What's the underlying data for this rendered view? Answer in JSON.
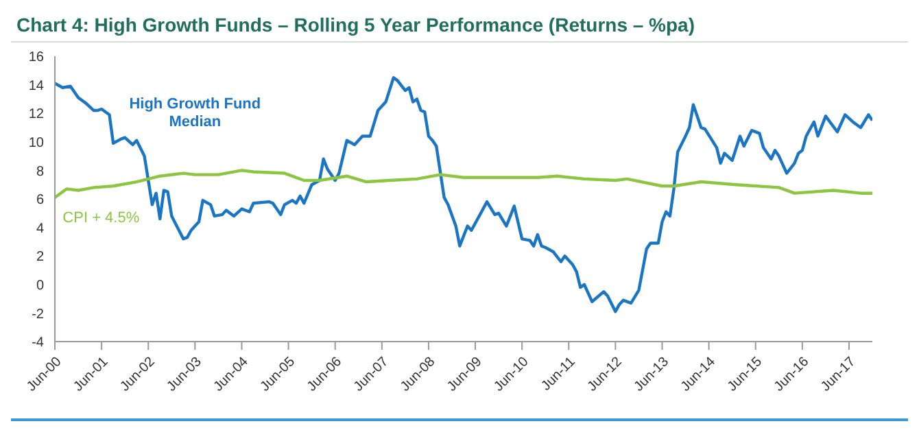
{
  "chart_data": {
    "type": "line",
    "title": "Chart 4:  High Growth Funds – Rolling 5 Year Performance (Returns – %pa)",
    "series": [
      {
        "name": "High Growth Fund Median",
        "color": "#1a75c4",
        "x": [
          "2000-06",
          "2000-08",
          "2000-10",
          "2000-12",
          "2001-02",
          "2001-04",
          "2001-05",
          "2001-06",
          "2001-08",
          "2001-09",
          "2001-11",
          "2001-12",
          "2002-02",
          "2002-03",
          "2002-05",
          "2002-07",
          "2002-08",
          "2002-09",
          "2002-10",
          "2002-11",
          "2002-12",
          "2003-03",
          "2003-04",
          "2003-05",
          "2003-07",
          "2003-08",
          "2003-10",
          "2003-11",
          "2004-01",
          "2004-02",
          "2004-04",
          "2004-06",
          "2004-08",
          "2004-09",
          "2005-01",
          "2005-02",
          "2005-04",
          "2005-05",
          "2005-07",
          "2005-08",
          "2005-09",
          "2005-10",
          "2005-12",
          "2006-02",
          "2006-03",
          "2006-04",
          "2006-06",
          "2006-07",
          "2006-09",
          "2006-11",
          "2007-01",
          "2007-03",
          "2007-05",
          "2007-07",
          "2007-09",
          "2007-10",
          "2007-12",
          "2008-01",
          "2008-02",
          "2008-03",
          "2008-04",
          "2008-05",
          "2008-06",
          "2008-07",
          "2008-08",
          "2008-10",
          "2008-11",
          "2009-01",
          "2009-02",
          "2009-04",
          "2009-05",
          "2009-07",
          "2009-09",
          "2009-11",
          "2009-12",
          "2010-02",
          "2010-04",
          "2010-06",
          "2010-08",
          "2010-09",
          "2010-10",
          "2010-11",
          "2010-12",
          "2011-02",
          "2011-04",
          "2011-05",
          "2011-07",
          "2011-08",
          "2011-09",
          "2011-10",
          "2011-12",
          "2012-03",
          "2012-04",
          "2012-06",
          "2012-07",
          "2012-08",
          "2012-10",
          "2012-12",
          "2013-02",
          "2013-03",
          "2013-05",
          "2013-06",
          "2013-07",
          "2013-08",
          "2013-09",
          "2013-10",
          "2013-12",
          "2014-01",
          "2014-02",
          "2014-04",
          "2014-05",
          "2014-08",
          "2014-09",
          "2014-10",
          "2014-12",
          "2015-02",
          "2015-03",
          "2015-05",
          "2015-07",
          "2015-08",
          "2015-10",
          "2015-11",
          "2015-12",
          "2016-02",
          "2016-04",
          "2016-05",
          "2016-06",
          "2016-07",
          "2016-09",
          "2016-10",
          "2016-12",
          "2017-03",
          "2017-05",
          "2017-07",
          "2017-09",
          "2017-11",
          "2017-12"
        ],
        "values": [
          14.1,
          13.8,
          13.9,
          13.1,
          12.7,
          12.2,
          12.2,
          12.3,
          11.9,
          9.9,
          10.2,
          10.3,
          9.8,
          10.1,
          9.0,
          5.6,
          6.4,
          4.6,
          6.6,
          6.5,
          4.8,
          3.2,
          3.3,
          3.8,
          4.4,
          5.9,
          5.6,
          4.8,
          4.9,
          5.2,
          4.8,
          5.3,
          5.1,
          5.7,
          5.8,
          5.7,
          4.9,
          5.6,
          5.9,
          5.7,
          6.2,
          5.7,
          7.0,
          7.3,
          8.8,
          8.1,
          7.3,
          7.8,
          10.1,
          9.8,
          10.4,
          10.4,
          12.2,
          12.8,
          14.5,
          14.3,
          13.6,
          13.8,
          12.8,
          13.0,
          12.2,
          12.1,
          10.4,
          10.1,
          9.7,
          6.1,
          5.6,
          4.1,
          2.7,
          4.1,
          3.8,
          4.8,
          5.8,
          4.9,
          5.0,
          4.1,
          5.5,
          3.2,
          3.1,
          2.7,
          3.5,
          2.7,
          2.6,
          2.3,
          1.6,
          2.0,
          1.4,
          0.9,
          -0.2,
          0.0,
          -1.2,
          -0.5,
          -0.8,
          -1.9,
          -1.4,
          -1.1,
          -1.3,
          -0.4,
          2.5,
          2.9,
          2.9,
          4.4,
          5.1,
          4.8,
          6.7,
          9.3,
          10.4,
          11.0,
          12.6,
          11.0,
          10.9,
          9.6,
          8.5,
          9.2,
          8.7,
          10.4,
          9.7,
          10.8,
          10.6,
          9.6,
          8.8,
          9.4,
          9.0,
          7.8,
          8.5,
          9.2,
          9.4,
          10.4,
          11.4,
          10.4,
          11.8,
          10.7,
          11.9,
          11.4,
          11.0,
          11.9,
          11.5
        ]
      },
      {
        "name": "CPI + 4.5%",
        "color": "#8cc63f",
        "x": [
          "2000-06",
          "2000-09",
          "2000-12",
          "2001-04",
          "2001-09",
          "2002-03",
          "2002-09",
          "2003-03",
          "2003-06",
          "2003-12",
          "2004-06",
          "2004-09",
          "2005-05",
          "2005-10",
          "2006-02",
          "2006-09",
          "2007-02",
          "2007-08",
          "2008-03",
          "2008-09",
          "2009-03",
          "2009-11",
          "2010-10",
          "2011-03",
          "2011-10",
          "2012-06",
          "2012-09",
          "2013-06",
          "2013-09",
          "2014-04",
          "2015-01",
          "2015-12",
          "2016-04",
          "2017-02",
          "2017-09",
          "2017-12"
        ],
        "values": [
          6.1,
          6.7,
          6.6,
          6.8,
          6.9,
          7.2,
          7.6,
          7.8,
          7.7,
          7.7,
          8.0,
          7.9,
          7.8,
          7.3,
          7.3,
          7.6,
          7.2,
          7.3,
          7.4,
          7.7,
          7.5,
          7.5,
          7.5,
          7.6,
          7.4,
          7.3,
          7.4,
          6.9,
          6.9,
          7.2,
          7.0,
          6.8,
          6.4,
          6.6,
          6.4,
          6.4
        ]
      }
    ],
    "xlim": [
      "2000-06",
      "2017-12"
    ],
    "xticks": [
      {
        "value": "2000-06",
        "label": "Jun-00"
      },
      {
        "value": "2001-06",
        "label": "Jun-01"
      },
      {
        "value": "2002-06",
        "label": "Jun-02"
      },
      {
        "value": "2003-06",
        "label": "Jun-03"
      },
      {
        "value": "2004-06",
        "label": "Jun-04"
      },
      {
        "value": "2005-06",
        "label": "Jun-05"
      },
      {
        "value": "2006-06",
        "label": "Jun-06"
      },
      {
        "value": "2007-06",
        "label": "Jun-07"
      },
      {
        "value": "2008-06",
        "label": "Jun-08"
      },
      {
        "value": "2009-06",
        "label": "Jun-09"
      },
      {
        "value": "2010-06",
        "label": "Jun-10"
      },
      {
        "value": "2011-06",
        "label": "Jun-11"
      },
      {
        "value": "2012-06",
        "label": "Jun-12"
      },
      {
        "value": "2013-06",
        "label": "Jun-13"
      },
      {
        "value": "2014-06",
        "label": "Jun-14"
      },
      {
        "value": "2015-06",
        "label": "Jun-15"
      },
      {
        "value": "2016-06",
        "label": "Jun-16"
      },
      {
        "value": "2017-06",
        "label": "Jun-17"
      }
    ],
    "ylim": [
      -4,
      16
    ],
    "yticks": [
      -4,
      -2,
      0,
      2,
      4,
      6,
      8,
      10,
      12,
      14,
      16
    ],
    "grid": false,
    "legend": false,
    "marker": "none",
    "line_style": "solid"
  }
}
